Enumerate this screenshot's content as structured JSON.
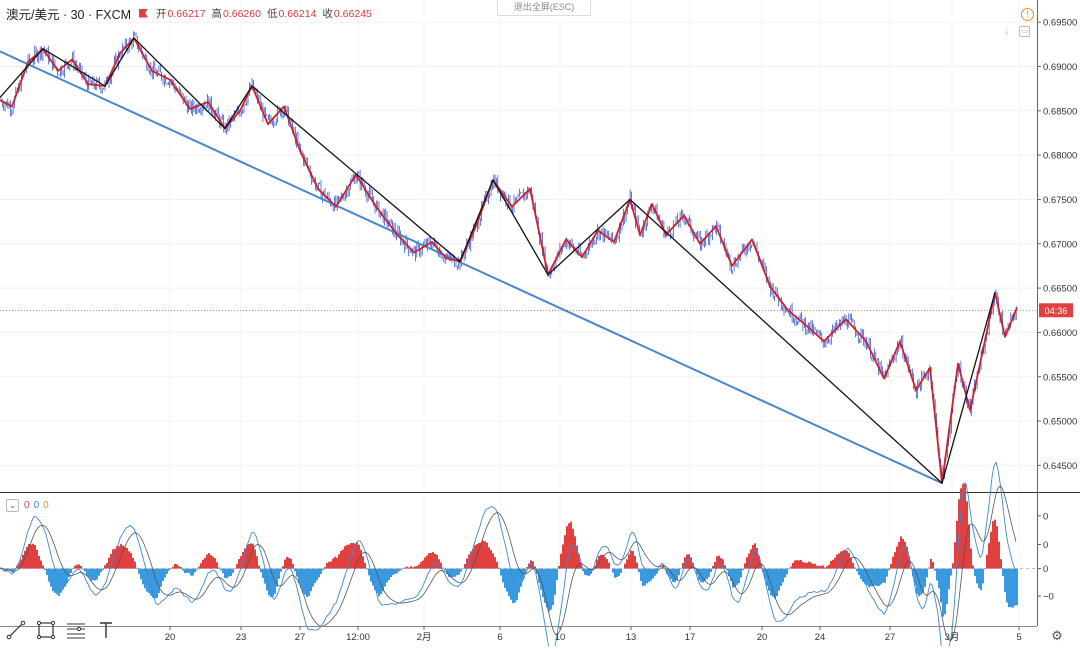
{
  "header": {
    "symbol": "澳元/美元 · 30 · FXCM",
    "ohlc": [
      {
        "key": "开",
        "value": "0.66217"
      },
      {
        "key": "高",
        "value": "0.66260"
      },
      {
        "key": "低",
        "value": "0.66214"
      },
      {
        "key": "收",
        "value": "0.66245"
      }
    ]
  },
  "exit_fullscreen_label": "退出全屏(ESC)",
  "oscillator_legend": {
    "values": [
      "0",
      "0",
      "0"
    ],
    "colors": [
      "#e04040",
      "#3a8ad8",
      "#f08a2a"
    ]
  },
  "colors": {
    "candles": "#1a44c8",
    "zigzag_minor": "#d21f2c",
    "zigzag_major": "#111111",
    "trendline": "#4a86cc",
    "hist_pos": "#e04040",
    "hist_neg": "#3a9ae0",
    "price_badge": "#e04040"
  },
  "chart_data": [
    {
      "type": "line",
      "title": "",
      "xlabel": "",
      "ylabel": "",
      "ylim": [
        0.642,
        0.6975
      ],
      "x_tick_labels": [
        "20",
        "23",
        "27",
        "12:00",
        "2月",
        "6",
        "10",
        "13",
        "17",
        "20",
        "24",
        "27",
        "3月",
        "5"
      ],
      "y_tick_labels": [
        "0.69500",
        "0.69000",
        "0.68500",
        "0.68000",
        "0.67500",
        "0.67000",
        "0.66500",
        "0.66000",
        "0.65500",
        "0.65000",
        "0.64500"
      ],
      "y_ticks": [
        0.695,
        0.69,
        0.685,
        0.68,
        0.675,
        0.67,
        0.665,
        0.66,
        0.655,
        0.65,
        0.645
      ],
      "last_price_badge": "04:36",
      "last_price": 0.6625,
      "series": [
        {
          "role": "zigzag_major",
          "x": [
            0,
            43,
            105,
            134,
            225,
            252,
            460,
            493,
            548,
            630,
            942,
            995
          ],
          "y": [
            0.6865,
            0.692,
            0.6878,
            0.6932,
            0.683,
            0.6878,
            0.668,
            0.6772,
            0.6665,
            0.675,
            0.643,
            0.6645
          ]
        },
        {
          "role": "zigzag_minor",
          "x": [
            0,
            12,
            28,
            43,
            58,
            72,
            88,
            105,
            120,
            134,
            152,
            170,
            190,
            208,
            225,
            240,
            252,
            268,
            284,
            300,
            318,
            336,
            356,
            376,
            396,
            414,
            432,
            446,
            460,
            476,
            493,
            512,
            530,
            548,
            566,
            582,
            598,
            614,
            630,
            640,
            652,
            666,
            684,
            700,
            716,
            732,
            752,
            770,
            788,
            806,
            824,
            846,
            866,
            884,
            900,
            916,
            930,
            942,
            958,
            970,
            982,
            995,
            1005,
            1017
          ],
          "y": [
            0.6862,
            0.6855,
            0.6905,
            0.692,
            0.6895,
            0.6908,
            0.688,
            0.6878,
            0.6915,
            0.6932,
            0.6895,
            0.6885,
            0.6852,
            0.686,
            0.683,
            0.685,
            0.6878,
            0.6835,
            0.6855,
            0.6805,
            0.6762,
            0.6742,
            0.6778,
            0.6742,
            0.6712,
            0.669,
            0.6702,
            0.6684,
            0.668,
            0.672,
            0.6772,
            0.6742,
            0.6762,
            0.6665,
            0.6705,
            0.6685,
            0.6715,
            0.6702,
            0.675,
            0.671,
            0.6745,
            0.671,
            0.6732,
            0.67,
            0.672,
            0.6675,
            0.6705,
            0.6652,
            0.6625,
            0.6608,
            0.659,
            0.6615,
            0.659,
            0.6548,
            0.659,
            0.6535,
            0.656,
            0.643,
            0.6565,
            0.6512,
            0.6575,
            0.6645,
            0.6595,
            0.6628
          ]
        },
        {
          "role": "trendline",
          "x": [
            0,
            942
          ],
          "y": [
            0.6917,
            0.643
          ]
        }
      ]
    },
    {
      "type": "area",
      "title": "",
      "xlabel": "",
      "ylabel": "",
      "y_tick_labels": [
        "0",
        "0",
        "0",
        "−0"
      ],
      "ylim": [
        -0.005,
        0.0065
      ],
      "y_ticks": [
        0.0046,
        0.0021,
        0,
        -0.0024
      ]
    }
  ]
}
